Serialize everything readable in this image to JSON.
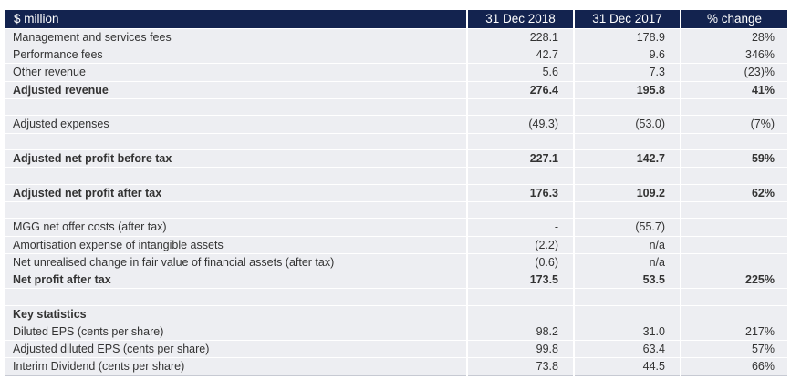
{
  "table": {
    "header": {
      "label": "$ million",
      "col_2018": "31 Dec 2018",
      "col_2017": "31 Dec 2017",
      "col_change": "% change"
    },
    "rows": [
      {
        "label": "Management and services fees",
        "v2018": "228.1",
        "v2017": "178.9",
        "change": "28%"
      },
      {
        "label": "Performance fees",
        "v2018": "42.7",
        "v2017": "9.6",
        "change": "346%"
      },
      {
        "label": "Other revenue",
        "v2018": "5.6",
        "v2017": "7.3",
        "change": "(23)%"
      },
      {
        "label": "Adjusted revenue",
        "v2018": "276.4",
        "v2017": "195.8",
        "change": "41%"
      },
      {
        "label": "",
        "v2018": "",
        "v2017": "",
        "change": ""
      },
      {
        "label": "Adjusted expenses",
        "v2018": "(49.3)",
        "v2017": "(53.0)",
        "change": "(7%)"
      },
      {
        "label": "",
        "v2018": "",
        "v2017": "",
        "change": ""
      },
      {
        "label": "Adjusted net profit before tax",
        "v2018": "227.1",
        "v2017": "142.7",
        "change": "59%"
      },
      {
        "label": "",
        "v2018": "",
        "v2017": "",
        "change": ""
      },
      {
        "label": "Adjusted net profit after tax",
        "v2018": "176.3",
        "v2017": "109.2",
        "change": "62%"
      },
      {
        "label": "",
        "v2018": "",
        "v2017": "",
        "change": ""
      },
      {
        "label": "MGG net offer costs (after tax)",
        "v2018": "-",
        "v2017": "(55.7)",
        "change": ""
      },
      {
        "label": "Amortisation expense of intangible assets",
        "v2018": "(2.2)",
        "v2017": "n/a",
        "change": ""
      },
      {
        "label": "Net unrealised change in fair value of financial assets (after tax)",
        "v2018": "(0.6)",
        "v2017": "n/a",
        "change": ""
      },
      {
        "label": "Net profit after tax",
        "v2018": "173.5",
        "v2017": "53.5",
        "change": "225%"
      },
      {
        "label": "",
        "v2018": "",
        "v2017": "",
        "change": ""
      },
      {
        "label": "Key statistics",
        "v2018": "",
        "v2017": "",
        "change": ""
      },
      {
        "label": "Diluted EPS (cents per share)",
        "v2018": "98.2",
        "v2017": "31.0",
        "change": "217%"
      },
      {
        "label": "Adjusted diluted EPS (cents per share)",
        "v2018": "99.8",
        "v2017": "63.4",
        "change": "57%"
      },
      {
        "label": "Interim Dividend (cents per share)",
        "v2018": "73.8",
        "v2017": "44.5",
        "change": "66%"
      }
    ]
  }
}
